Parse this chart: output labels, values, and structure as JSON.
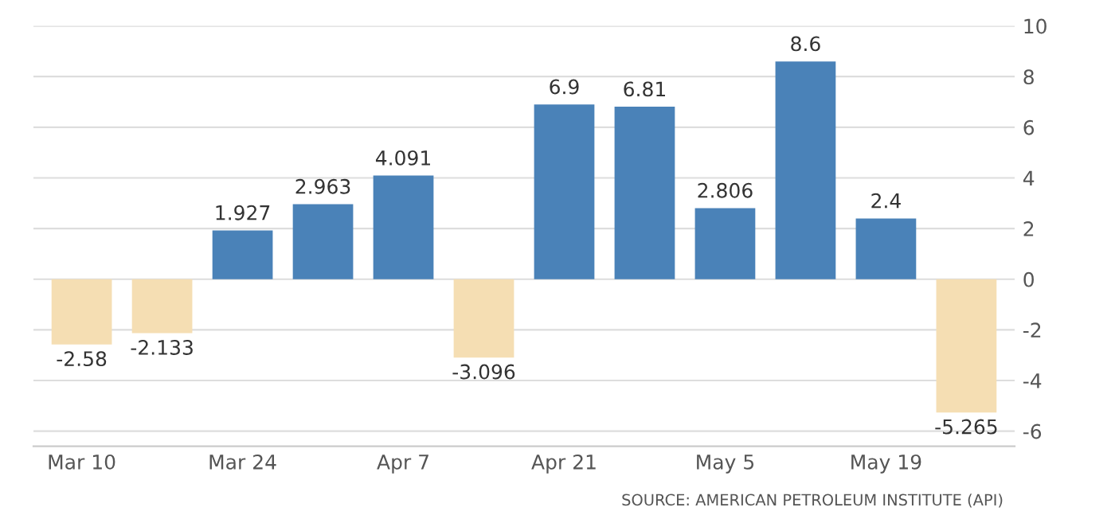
{
  "chart_data": {
    "type": "bar",
    "categories": [
      "Mar 10",
      null,
      "Mar 24",
      null,
      "Apr 7",
      null,
      "Apr 21",
      null,
      "May 5",
      null,
      "May 19",
      null
    ],
    "values": [
      -2.58,
      -2.133,
      1.927,
      2.963,
      4.091,
      -3.096,
      6.9,
      6.81,
      2.806,
      8.6,
      2.4,
      -5.265
    ],
    "colors": [
      "#f5deb3",
      "#f5deb3",
      "#4a82b8",
      "#4a82b8",
      "#4a82b8",
      "#f5deb3",
      "#4a82b8",
      "#4a82b8",
      "#4a82b8",
      "#4a82b8",
      "#4a82b8",
      "#f5deb3"
    ],
    "data_labels": true,
    "ylim": [
      -6.6,
      10
    ],
    "yticks": [
      -6,
      -4,
      -2,
      0,
      2,
      4,
      6,
      8,
      10
    ],
    "grid": "y",
    "annotations": [
      "SOURCE: AMERICAN PETROLEUM INSTITUTE (API)"
    ]
  }
}
